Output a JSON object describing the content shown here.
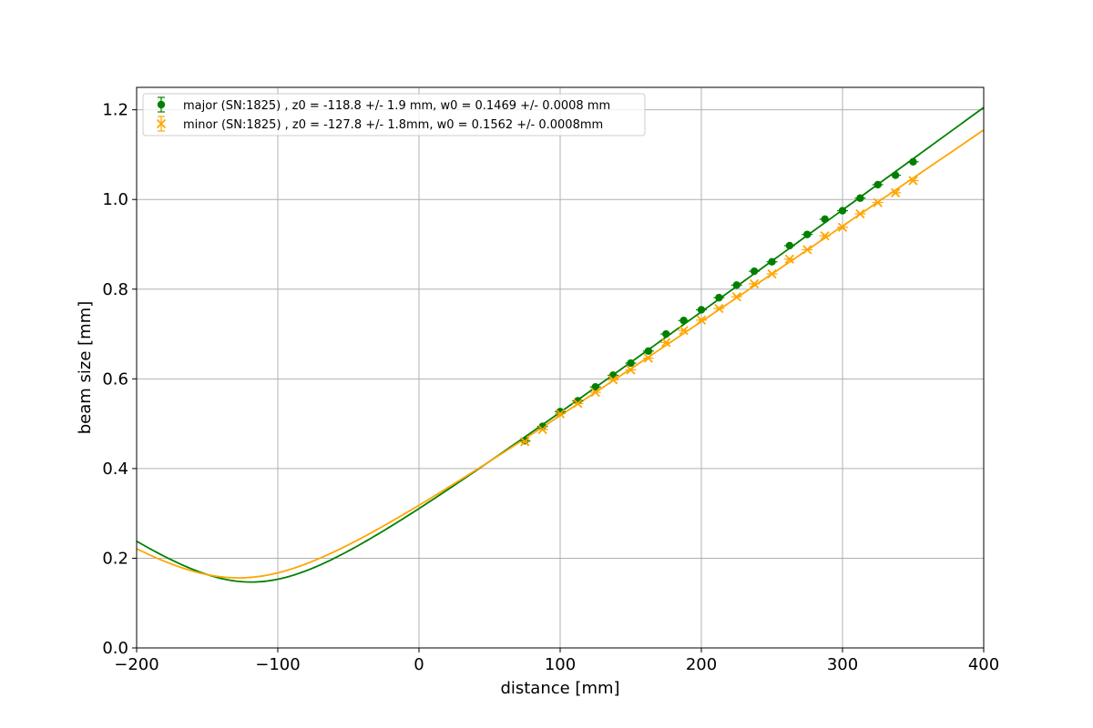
{
  "chart_data": {
    "type": "scatter",
    "title": "",
    "xlabel": "distance [mm]",
    "ylabel": "beam size [mm]",
    "xlim": [
      -200,
      400
    ],
    "ylim": [
      0.0,
      1.25
    ],
    "grid": true,
    "legend_position": "top-left",
    "x_ticks": [
      -200,
      -100,
      0,
      100,
      200,
      300,
      400
    ],
    "x_tick_labels": [
      "−200",
      "−100",
      "0",
      "100",
      "200",
      "300",
      "400"
    ],
    "y_ticks": [
      0.0,
      0.2,
      0.4,
      0.6,
      0.8,
      1.0,
      1.2
    ],
    "y_tick_labels": [
      "0.0",
      "0.2",
      "0.4",
      "0.6",
      "0.8",
      "1.0",
      "1.2"
    ],
    "series": [
      {
        "name": "major (SN:1825) , z0 = -118.8 +/- 1.9 mm, w0 = 0.1469 +/- 0.0008 mm",
        "color": "#008000",
        "marker": "circle",
        "fit": {
          "z0": -118.8,
          "w0": 0.1469
        },
        "x": [
          75,
          87.5,
          100,
          112.5,
          125,
          137.5,
          150,
          162.5,
          175,
          187.5,
          200,
          212.5,
          225,
          237.5,
          250,
          262.5,
          275,
          287.5,
          300,
          312.5,
          325,
          337.5,
          350
        ],
        "y": [
          0.462,
          0.494,
          0.527,
          0.551,
          0.582,
          0.608,
          0.635,
          0.662,
          0.7,
          0.73,
          0.754,
          0.781,
          0.809,
          0.84,
          0.861,
          0.897,
          0.922,
          0.956,
          0.975,
          1.003,
          1.033,
          1.054,
          1.084
        ]
      },
      {
        "name": "minor (SN:1825) , z0 = -127.8 +/- 1.8mm, w0 = 0.1562 +/- 0.0008mm",
        "color": "#ffa500",
        "marker": "x",
        "fit": {
          "z0": -127.8,
          "w0": 0.1562
        },
        "x": [
          75,
          87.5,
          100,
          112.5,
          125,
          137.5,
          150,
          162.5,
          175,
          187.5,
          200,
          212.5,
          225,
          237.5,
          250,
          262.5,
          275,
          287.5,
          300,
          312.5,
          325,
          337.5,
          350
        ],
        "y": [
          0.46,
          0.487,
          0.522,
          0.545,
          0.57,
          0.598,
          0.62,
          0.646,
          0.681,
          0.708,
          0.731,
          0.757,
          0.783,
          0.812,
          0.834,
          0.867,
          0.888,
          0.919,
          0.938,
          0.968,
          0.993,
          1.015,
          1.042
        ]
      }
    ]
  }
}
